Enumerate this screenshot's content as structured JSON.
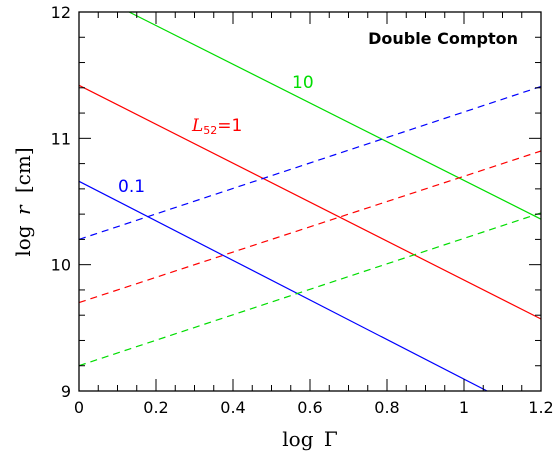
{
  "chart_data": {
    "type": "line",
    "title": "Double Compton",
    "xlabel": {
      "prefix": "log",
      "symbol": "Γ"
    },
    "ylabel": {
      "prefix": "log",
      "symbol": "r",
      "unit": "[cm]"
    },
    "xlim": [
      0,
      1.2
    ],
    "ylim": [
      9,
      12
    ],
    "x_ticks": [
      0,
      0.2,
      0.4,
      0.6,
      0.8,
      1,
      1.2
    ],
    "x_tick_labels": [
      "0",
      "0.2",
      "0.4",
      "0.6",
      "0.8",
      "1",
      "1.2"
    ],
    "y_ticks": [
      9,
      10,
      11,
      12
    ],
    "y_tick_labels": [
      "9",
      "10",
      "11",
      "12"
    ],
    "grid": false,
    "series": [
      {
        "name": "0.1",
        "label_style": "plain",
        "color": "#0000ff",
        "dash": "solid",
        "x": [
          0,
          1.06
        ],
        "y": [
          10.66,
          9.0
        ]
      },
      {
        "name_main": "L",
        "name_sub": "52",
        "name_value": "=1",
        "label_style": "math",
        "color": "#ff0000",
        "dash": "solid",
        "x": [
          0,
          1.2
        ],
        "y": [
          11.42,
          9.57
        ]
      },
      {
        "name": "10",
        "label_style": "plain",
        "color": "#00dd00",
        "dash": "solid",
        "x": [
          0.13,
          1.2
        ],
        "y": [
          12.0,
          10.36
        ]
      },
      {
        "color": "#0000ff",
        "dash": "dashed",
        "x": [
          0,
          1.2
        ],
        "y": [
          10.2,
          11.41
        ]
      },
      {
        "color": "#ff0000",
        "dash": "dashed",
        "x": [
          0,
          1.2
        ],
        "y": [
          9.7,
          10.9
        ]
      },
      {
        "color": "#00dd00",
        "dash": "dashed",
        "x": [
          0,
          1.2
        ],
        "y": [
          9.2,
          10.41
        ]
      }
    ]
  }
}
